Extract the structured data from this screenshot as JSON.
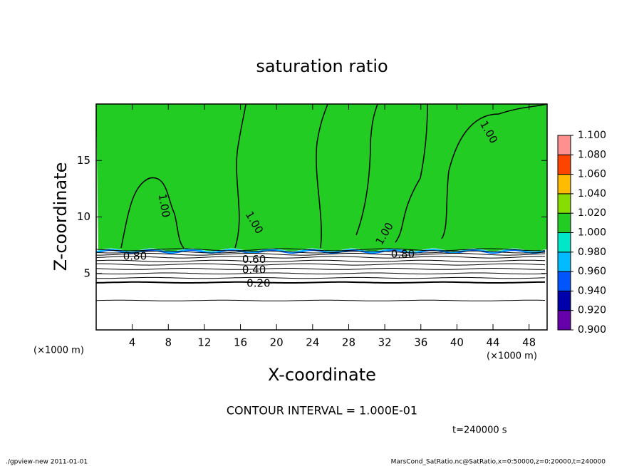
{
  "chart_data": {
    "type": "contour",
    "title": "saturation ratio",
    "x_label": "X-coordinate",
    "y_label": "Z-coordinate",
    "x_unit": "(×1000 m)",
    "y_unit": "(×1000 m)",
    "xlim": [
      0,
      50
    ],
    "ylim": [
      0,
      20
    ],
    "xticks": [
      4,
      8,
      12,
      16,
      20,
      24,
      28,
      32,
      36,
      40,
      44,
      48
    ],
    "yticks": [
      5,
      10,
      15
    ],
    "contour_labels": [
      "1.00",
      "1.00",
      "1.00",
      "1.00",
      "0.80",
      "0.80",
      "0.60",
      "0.40",
      "0.20"
    ],
    "annotation": "CONTOUR INTERVAL = 1.000E-01",
    "time": "t=240000 s",
    "footer_left": "./gpview-new   2011-01-01",
    "footer_right": "MarsCond_SatRatio.nc@SatRatio,x=0:50000,z=0:20000,t=240000",
    "colorbar": {
      "levels": [
        {
          "value": 0.9,
          "label": "0.900"
        },
        {
          "value": 0.92,
          "label": "0.920"
        },
        {
          "value": 0.94,
          "label": "0.940"
        },
        {
          "value": 0.96,
          "label": "0.960"
        },
        {
          "value": 0.98,
          "label": "0.980"
        },
        {
          "value": 1.0,
          "label": "1.000"
        },
        {
          "value": 1.02,
          "label": "1.020"
        },
        {
          "value": 1.04,
          "label": "1.040"
        },
        {
          "value": 1.06,
          "label": "1.060"
        },
        {
          "value": 1.08,
          "label": "1.080"
        },
        {
          "value": 1.1,
          "label": "1.100"
        }
      ],
      "colors": [
        "#6600aa",
        "#0000aa",
        "#0055ff",
        "#00bbff",
        "#00e6c8",
        "#22cc22",
        "#88dd00",
        "#ffbb00",
        "#ff4400",
        "#ff9090"
      ]
    }
  }
}
